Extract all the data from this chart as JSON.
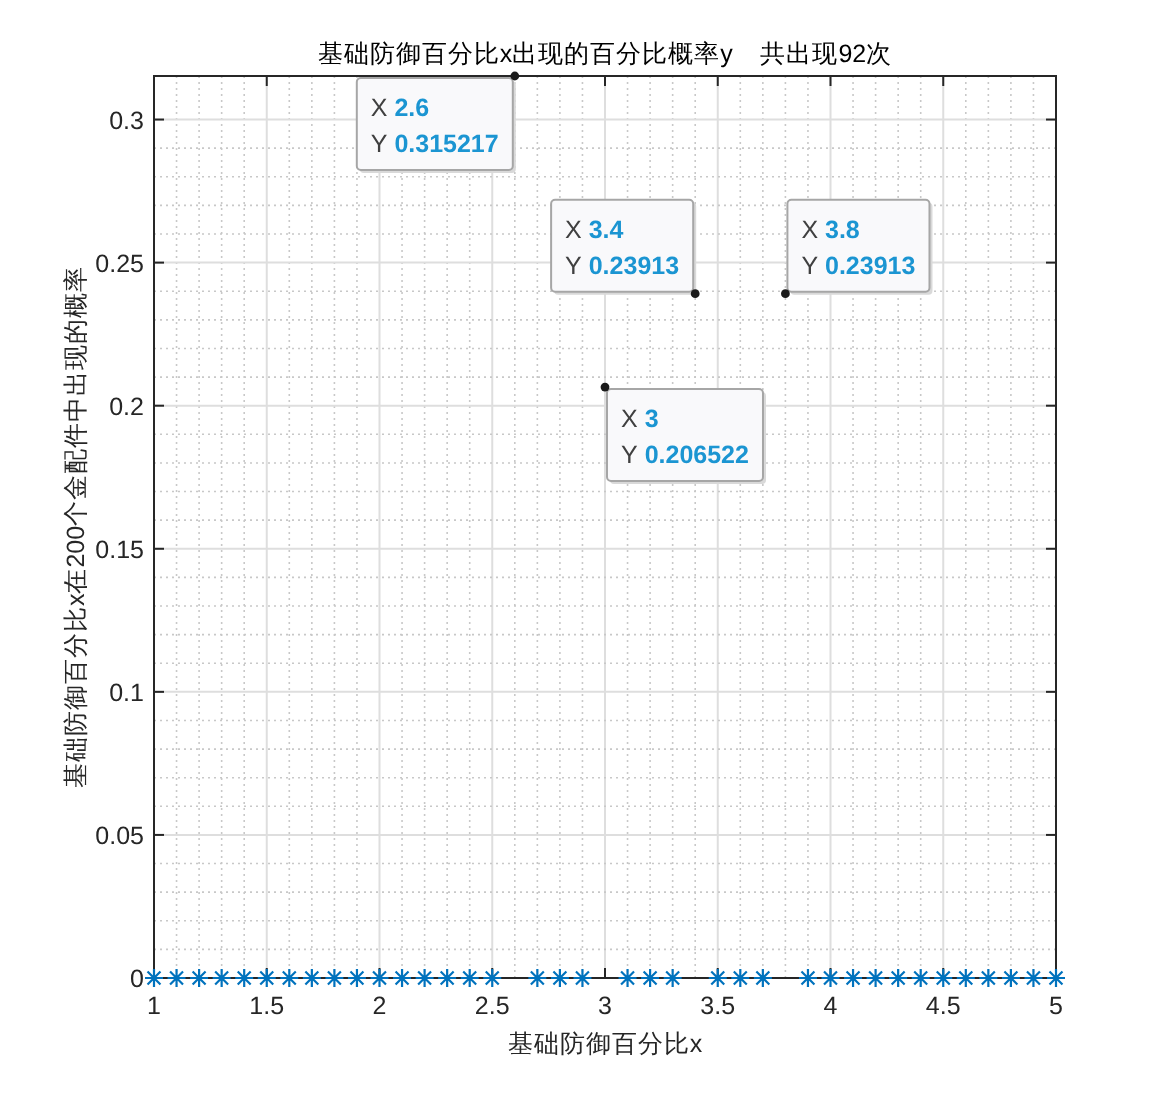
{
  "chart_data": {
    "type": "scatter",
    "title": "基础防御百分比x出现的百分比概率y    共出现92次",
    "xlabel": "基础防御百分比x",
    "ylabel": "基础防御百分比x在200个金配件中出现的概率",
    "series": [
      {
        "color": "#0072bd",
        "marker": "cross",
        "x": [
          1,
          1.1,
          1.2,
          1.3,
          1.4,
          1.5,
          1.6,
          1.7,
          1.8,
          1.9,
          2,
          2.1,
          2.2,
          2.3,
          2.4,
          2.5,
          2.7,
          2.8,
          2.9,
          3.1,
          3.2,
          3.3,
          3.5,
          3.6,
          3.7,
          3.9,
          4,
          4.1,
          4.2,
          4.3,
          4.4,
          4.5,
          4.6,
          4.7,
          4.8,
          4.9,
          5
        ],
        "values": [
          0,
          0,
          0,
          0,
          0,
          0,
          0,
          0,
          0,
          0,
          0,
          0,
          0,
          0,
          0,
          0,
          0,
          0,
          0,
          0,
          0,
          0,
          0,
          0,
          0,
          0,
          0,
          0,
          0,
          0,
          0,
          0,
          0,
          0,
          0,
          0,
          0
        ]
      },
      {
        "color": "#1a1a1a",
        "marker": "circle",
        "x": [
          2.6,
          3,
          3.4,
          3.8
        ],
        "values": [
          0.315217,
          0.206522,
          0.23913,
          0.23913
        ]
      }
    ],
    "annotations": [
      {
        "text": "X 2.6\nY 0.315217",
        "x": 2.6,
        "y": 0.315217
      },
      {
        "text": "X 3\nY 0.206522",
        "x": 3,
        "y": 0.206522
      },
      {
        "text": "X 3.4\nY 0.23913",
        "x": 3.4,
        "y": 0.23913
      },
      {
        "text": "X 3.8\nY 0.23913",
        "x": 3.8,
        "y": 0.23913
      }
    ],
    "xlim": [
      1,
      5
    ],
    "ylim": [
      0,
      0.315217
    ],
    "xticks": [
      1,
      1.5,
      2,
      2.5,
      3,
      3.5,
      4,
      4.5,
      5
    ],
    "yticks": [
      0,
      0.05,
      0.1,
      0.15,
      0.2,
      0.25,
      0.3
    ],
    "grid": true
  }
}
